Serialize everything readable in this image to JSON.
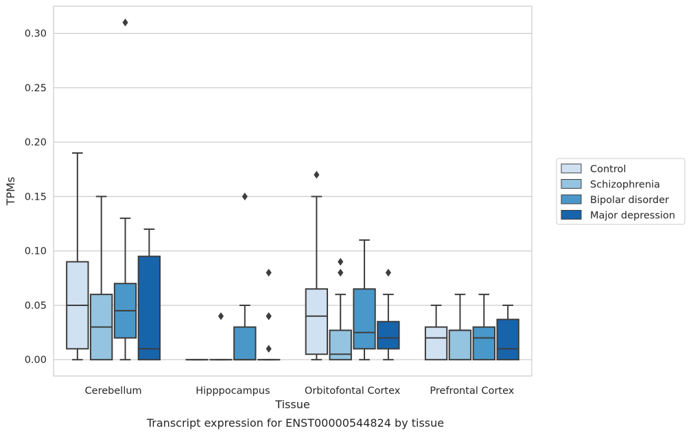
{
  "chart_data": {
    "type": "box",
    "caption": "Transcript expression for ENST00000544824 by tissue",
    "xlabel": "Tissue",
    "ylabel": "TPMs",
    "ylim": [
      -0.015,
      0.325
    ],
    "yticks": [
      0.0,
      0.05,
      0.1,
      0.15,
      0.2,
      0.25,
      0.3
    ],
    "ytick_labels": [
      "0.00",
      "0.05",
      "0.10",
      "0.15",
      "0.20",
      "0.25",
      "0.30"
    ],
    "grid": "horizontal",
    "legend_position": "right",
    "categories": [
      "Cerebellum",
      "Hipppocampus",
      "Orbitofontal Cortex",
      "Prefrontal Cortex"
    ],
    "series": [
      {
        "name": "Control",
        "color": "#d0e1f2",
        "boxes": [
          {
            "whisker_low": 0.0,
            "q1": 0.01,
            "median": 0.05,
            "q3": 0.09,
            "whisker_high": 0.19,
            "outliers": []
          },
          {
            "whisker_low": 0.0,
            "q1": 0.0,
            "median": 0.0,
            "q3": 0.0,
            "whisker_high": 0.0,
            "outliers": []
          },
          {
            "whisker_low": 0.0,
            "q1": 0.005,
            "median": 0.04,
            "q3": 0.065,
            "whisker_high": 0.15,
            "outliers": [
              0.17
            ]
          },
          {
            "whisker_low": 0.0,
            "q1": 0.0,
            "median": 0.02,
            "q3": 0.03,
            "whisker_high": 0.05,
            "outliers": []
          }
        ]
      },
      {
        "name": "Schizophrenia",
        "color": "#94c4df",
        "boxes": [
          {
            "whisker_low": 0.0,
            "q1": 0.0,
            "median": 0.03,
            "q3": 0.06,
            "whisker_high": 0.15,
            "outliers": []
          },
          {
            "whisker_low": 0.0,
            "q1": 0.0,
            "median": 0.0,
            "q3": 0.0,
            "whisker_high": 0.0,
            "outliers": [
              0.04
            ]
          },
          {
            "whisker_low": 0.0,
            "q1": 0.0,
            "median": 0.005,
            "q3": 0.027,
            "whisker_high": 0.06,
            "outliers": [
              0.08,
              0.09
            ]
          },
          {
            "whisker_low": 0.0,
            "q1": 0.0,
            "median": 0.027,
            "q3": 0.027,
            "whisker_high": 0.06,
            "outliers": []
          }
        ]
      },
      {
        "name": "Bipolar disorder",
        "color": "#4a98c9",
        "boxes": [
          {
            "whisker_low": 0.0,
            "q1": 0.02,
            "median": 0.045,
            "q3": 0.07,
            "whisker_high": 0.13,
            "outliers": [
              0.31
            ]
          },
          {
            "whisker_low": 0.0,
            "q1": 0.0,
            "median": 0.0,
            "q3": 0.03,
            "whisker_high": 0.05,
            "outliers": [
              0.15
            ]
          },
          {
            "whisker_low": 0.0,
            "q1": 0.01,
            "median": 0.025,
            "q3": 0.065,
            "whisker_high": 0.11,
            "outliers": []
          },
          {
            "whisker_low": 0.0,
            "q1": 0.0,
            "median": 0.02,
            "q3": 0.03,
            "whisker_high": 0.06,
            "outliers": []
          }
        ]
      },
      {
        "name": "Major depression",
        "color": "#1764ab",
        "boxes": [
          {
            "whisker_low": 0.0,
            "q1": 0.0,
            "median": 0.01,
            "q3": 0.095,
            "whisker_high": 0.12,
            "outliers": []
          },
          {
            "whisker_low": 0.0,
            "q1": 0.0,
            "median": 0.0,
            "q3": 0.0,
            "whisker_high": 0.0,
            "outliers": [
              0.01,
              0.04,
              0.04,
              0.08
            ]
          },
          {
            "whisker_low": 0.0,
            "q1": 0.01,
            "median": 0.02,
            "q3": 0.035,
            "whisker_high": 0.06,
            "outliers": [
              0.08
            ]
          },
          {
            "whisker_low": 0.0,
            "q1": 0.0,
            "median": 0.01,
            "q3": 0.037,
            "whisker_high": 0.05,
            "outliers": []
          }
        ]
      }
    ]
  }
}
